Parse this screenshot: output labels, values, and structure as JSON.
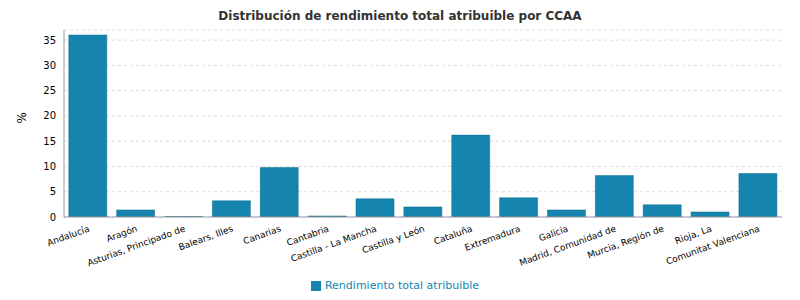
{
  "chart_data": {
    "type": "bar",
    "title": "Distribución de rendimiento total atribuible por CCAA",
    "ylabel": "%",
    "categories": [
      "Andalucía",
      "Aragón",
      "Asturias, Principado de",
      "Balears, Illes",
      "Canarias",
      "Cantabria",
      "Castilla - La Mancha",
      "Castilla y León",
      "Cataluña",
      "Extremadura",
      "Galicia",
      "Madrid, Comunidad de",
      "Murcia, Región de",
      "Rioja, La",
      "Comunitat Valenciana"
    ],
    "series": [
      {
        "name": "Rendimiento total atribuible",
        "color": "#1585b0",
        "values": [
          36.0,
          1.4,
          0.1,
          3.2,
          9.8,
          0.2,
          3.6,
          2.0,
          16.2,
          3.8,
          1.4,
          8.2,
          2.4,
          1.0,
          8.6
        ]
      }
    ],
    "ylim": [
      0,
      37
    ],
    "yticks": [
      0,
      5,
      10,
      15,
      20,
      25,
      30,
      35
    ],
    "grid": true,
    "legend": "bottom"
  }
}
